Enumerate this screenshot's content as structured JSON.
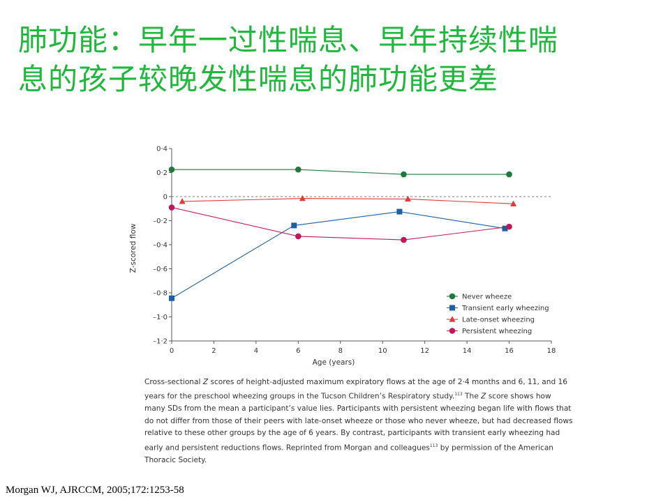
{
  "slide": {
    "title_line1": "肺功能：早年一过性喘息、早年持续性喘",
    "title_line2": "息的孩子较晚发性喘息的肺功能更差",
    "caption_part1": "Cross-sectional ",
    "caption_z": "Z",
    "caption_part2": " scores of height-adjusted maximum expiratory flows at the age of 2·4 months and 6, 11, and 16 years for the preschool wheezing groups in the Tucson Children’s Respiratory study.",
    "caption_ref1": "113",
    "caption_part3": " The ",
    "caption_z2": "Z",
    "caption_part4": " score shows how many SDs from the mean a participant’s value lies. Participants with persistent wheezing began life with flows that do not differ from those of their peers with late-onset wheeze or those who never wheeze, but had decreased flows relative to these other groups by the age of 6 years. By contrast, participants with transient early wheezing had early and persistent reductions flows. Reprinted from Morgan and colleagues",
    "caption_ref2": "113",
    "caption_part5": " by permission of the American Thoracic Society.",
    "citation": "Morgan WJ, AJRCCM, 2005;172:1253-58"
  },
  "chart_data": {
    "type": "line",
    "xlabel": "Age (years)",
    "ylabel": "Z-scored flow",
    "xlim": [
      0,
      18
    ],
    "ylim": [
      -1.2,
      0.4
    ],
    "xticks": [
      0,
      2,
      4,
      6,
      8,
      10,
      12,
      14,
      16,
      18
    ],
    "xtick_labels": [
      "0",
      "2",
      "4",
      "6",
      "8",
      "10",
      "12",
      "14",
      "16",
      "18"
    ],
    "yticks": [
      0.4,
      0.2,
      0,
      -0.2,
      -0.4,
      -0.6,
      -0.8,
      -1.0,
      -1.2
    ],
    "ytick_labels": [
      "0·4",
      "0·2",
      "0",
      "–0·2",
      "–0·4",
      "–0·6",
      "–0·8",
      "–1·0",
      "–1·2"
    ],
    "reference_line": 0,
    "grid": false,
    "legend_position": "lower-right",
    "series": [
      {
        "name": "Never wheeze",
        "color": "#1f7a3c",
        "marker": "circle",
        "x": [
          0,
          6,
          11,
          16
        ],
        "y": [
          0.225,
          0.225,
          0.185,
          0.185
        ]
      },
      {
        "name": "Transient early wheezing",
        "color": "#1f5fa3",
        "marker": "square",
        "x": [
          0,
          5.8,
          10.8,
          15.8
        ],
        "y": [
          -0.845,
          -0.24,
          -0.125,
          -0.265
        ]
      },
      {
        "name": "Late-onset wheezing",
        "color": "#e03a3a",
        "marker": "triangle",
        "x": [
          0.5,
          6.2,
          11.2,
          16.2
        ],
        "y": [
          -0.04,
          -0.015,
          -0.02,
          -0.06
        ]
      },
      {
        "name": "Persistent wheezing",
        "color": "#c2185b",
        "marker": "circle",
        "x": [
          0,
          6,
          11,
          16
        ],
        "y": [
          -0.09,
          -0.33,
          -0.36,
          -0.25
        ]
      }
    ]
  }
}
